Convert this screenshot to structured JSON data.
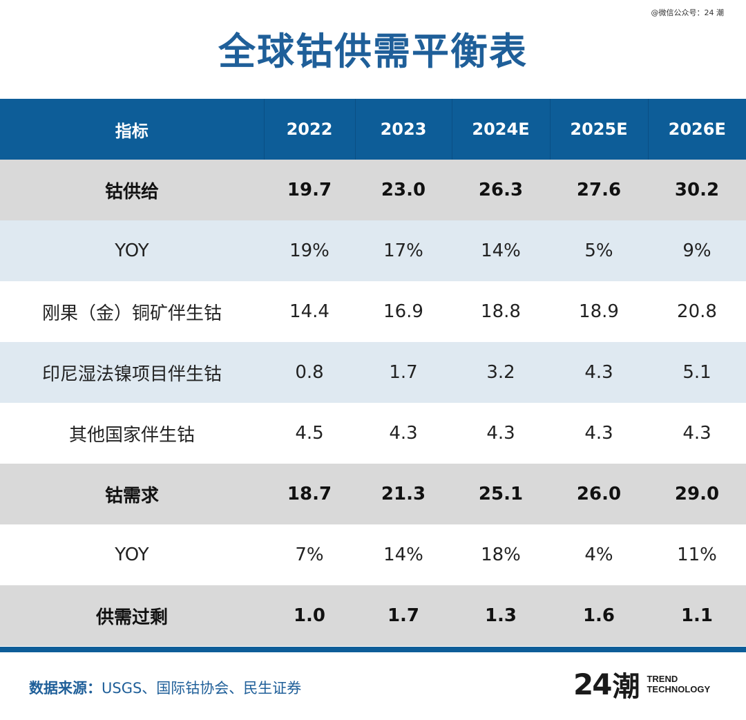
{
  "watermark": "@微信公众号：24 潮",
  "title": "全球钴供需平衡表",
  "table": {
    "headers": [
      "指标",
      "2022",
      "2023",
      "2024E",
      "2025E",
      "2026E"
    ],
    "rows": [
      {
        "style": "bold",
        "cells": [
          "钴供给",
          "19.7",
          "23.0",
          "26.3",
          "27.6",
          "30.2"
        ]
      },
      {
        "style": "blue",
        "cells": [
          "YOY",
          "19%",
          "17%",
          "14%",
          "5%",
          "9%"
        ]
      },
      {
        "style": "white",
        "cells": [
          "刚果（金）铜矿伴生钴",
          "14.4",
          "16.9",
          "18.8",
          "18.9",
          "20.8"
        ]
      },
      {
        "style": "blue",
        "cells": [
          "印尼湿法镍项目伴生钴",
          "0.8",
          "1.7",
          "3.2",
          "4.3",
          "5.1"
        ]
      },
      {
        "style": "white",
        "cells": [
          "其他国家伴生钴",
          "4.5",
          "4.3",
          "4.3",
          "4.3",
          "4.3"
        ]
      },
      {
        "style": "bold",
        "cells": [
          "钴需求",
          "18.7",
          "21.3",
          "25.1",
          "26.0",
          "29.0"
        ]
      },
      {
        "style": "white",
        "cells": [
          "YOY",
          "7%",
          "14%",
          "18%",
          "4%",
          "11%"
        ]
      },
      {
        "style": "bold",
        "cells": [
          "供需过剩",
          "1.0",
          "1.7",
          "1.3",
          "1.6",
          "1.1"
        ]
      }
    ]
  },
  "source": {
    "label": "数据来源：",
    "text": "USGS、国际钴协会、民生证券"
  },
  "logo": {
    "number": "24",
    "char": "潮",
    "line1": "TREND",
    "line2": "TECHNOLOGY"
  },
  "colors": {
    "accent": "#1f5f99",
    "header_bg": "#0d5d98",
    "bold_row_bg": "#d9d9d9",
    "blue_row_bg": "#dfe9f1"
  }
}
